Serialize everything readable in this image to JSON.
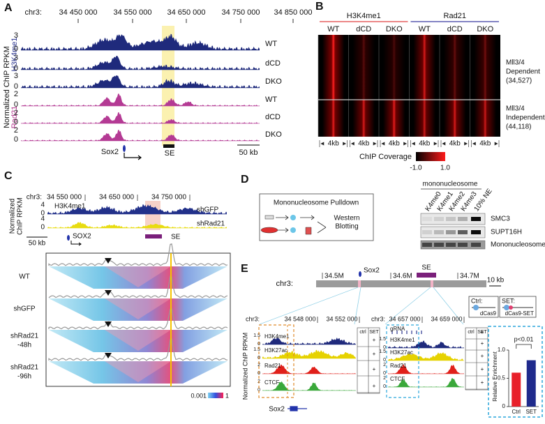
{
  "panel_labels": [
    "A",
    "B",
    "C",
    "D",
    "E"
  ],
  "A": {
    "chrom": "chr3:",
    "coords": [
      "34 450 000",
      "34 550 000",
      "34 650 000",
      "34 750 000",
      "34 850 000"
    ],
    "ylabel": "Normalized ChIP RPKM",
    "mark_top": "H3K4me1",
    "mark_bottom": "Rad21",
    "tracks": [
      {
        "name": "WT",
        "top": "3",
        "bottom": "0"
      },
      {
        "name": "dCD",
        "top": "3",
        "bottom": "0"
      },
      {
        "name": "DKO",
        "top": "3",
        "bottom": "0"
      },
      {
        "name": "WT",
        "top": "2",
        "bottom": "0"
      },
      {
        "name": "dCD",
        "top": "2",
        "bottom": "0"
      },
      {
        "name": "DKO",
        "top": "2",
        "bottom": "0"
      }
    ],
    "gene": "Sox2",
    "element": "SE",
    "scale": "50 kb"
  },
  "B": {
    "groups": [
      "H3K4me1",
      "Rad21"
    ],
    "columns": [
      "WT",
      "dCD",
      "DKO",
      "WT",
      "dCD",
      "DKO"
    ],
    "rows": [
      {
        "lines": [
          "Mll3/4",
          "Dependent"
        ],
        "count": "(34,527)"
      },
      {
        "lines": [
          "Mll3/4",
          "Independent"
        ],
        "count": "(44,118)"
      }
    ],
    "window": "4kb",
    "colorbar_title": "ChIP Coverage",
    "colorbar_ticks": [
      "-1.0",
      "1.0"
    ]
  },
  "C": {
    "chrom": "chr3:",
    "coords": [
      "34 550 000",
      "34 650 000",
      "34 750 000"
    ],
    "ylabel": [
      "Normalized",
      "ChIP RPKM"
    ],
    "mark": "H3K4me1",
    "tracks": [
      {
        "name": "shGFP",
        "top": "4",
        "bottom": "0"
      },
      {
        "name": "shRad21",
        "top": "4",
        "bottom": "0"
      }
    ],
    "scale": "50 kb",
    "gene": "SOX2",
    "element": "SE",
    "conditions": [
      [
        "WT"
      ],
      [
        "shGFP"
      ],
      [
        "shRad21",
        "-48h"
      ],
      [
        "shRad21",
        "-96h"
      ]
    ],
    "colorbar_ticks": [
      "0.001",
      "1"
    ]
  },
  "D": {
    "schematic_title": "Mononucleosome Pulldown",
    "schematic_result": [
      "Western",
      "Blotting"
    ],
    "blot_group": "mononucleosome",
    "lanes": [
      "K4me0",
      "K4me1",
      "K4me2",
      "K4me3",
      "10% NE"
    ],
    "blots": [
      "SMC3",
      "SUPT16H",
      "Mononucleosome"
    ]
  },
  "E": {
    "chrom": "chr3:",
    "coords": [
      "34.5M",
      "34.6M",
      "34.7M"
    ],
    "gene": "Sox2",
    "element": "SE",
    "scale": "10 kb",
    "ctrl": {
      "label": "Ctrl:",
      "construct": "dCas9"
    },
    "set": {
      "label": "SET:",
      "construct": "dCas9-SET"
    },
    "ylabel": "Normalized ChIP RPKM",
    "left": {
      "chrom": "chr3:",
      "coords": [
        "34 548 000",
        "34 552 000"
      ],
      "columns": [
        "ctrl",
        "SET"
      ],
      "gene": "Sox2",
      "tracks": [
        {
          "name": "H3K4me1",
          "top": "1.5",
          "bottom": "0",
          "mark": "+"
        },
        {
          "name": "H3K27ac",
          "top": "1.5",
          "bottom": "0",
          "mark": "+"
        },
        {
          "name": "Rad21",
          "top": "2",
          "bottom": "0",
          "mark": "+"
        },
        {
          "name": "CTCF",
          "top": "2",
          "bottom": "0",
          "mark": "+"
        }
      ]
    },
    "right": {
      "chrom": "chr3:",
      "coords": [
        "34 657 000",
        "34 659 000"
      ],
      "columns": [
        "ctrl",
        "SET"
      ],
      "tracks": [
        {
          "name": "gRNA",
          "mark": "+"
        },
        {
          "name": "H3K4me1",
          "top": "1.5",
          "bottom": "0",
          "mark": "+"
        },
        {
          "name": "H3K27ac",
          "top": "1.5",
          "bottom": "0",
          "mark": "+"
        },
        {
          "name": "Rad21",
          "top": "2",
          "bottom": "0",
          "mark": "+"
        },
        {
          "name": "CTCF",
          "top": "2",
          "bottom": "0",
          "mark": "+"
        }
      ]
    }
  },
  "chart_data": {
    "type": "bar",
    "ylabel": "Relative Enrichment",
    "categories": [
      "Ctrl",
      "SET"
    ],
    "values": [
      0.6,
      0.82
    ],
    "colors": [
      "#e8202a",
      "#1f2a8c"
    ],
    "ylim": [
      0,
      1
    ],
    "yticks": [
      0,
      0.5,
      {
        "value": 1,
        "label": "1.0"
      }
    ],
    "annotation": "p<0.01"
  }
}
